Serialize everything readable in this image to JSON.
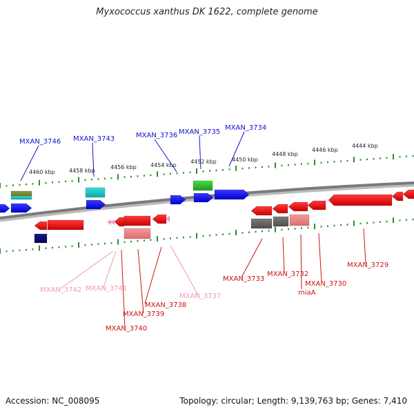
{
  "title": "Myxococcus xanthus DK 1622, complete genome",
  "footer": {
    "accession": "Accession: NC_008095",
    "summary": "Topology: circular; Length: 9,139,763 bp; Genes: 7,410"
  },
  "colors": {
    "backbone": "#7a7a7a",
    "tick": "#2e8b2e",
    "forward_label": "#1010cc",
    "reverse_label": "#cc1111",
    "pseudo_label": "#ee99bb"
  },
  "kbp_ticks": [
    "4460 kbp",
    "4458 kbp",
    "4456 kbp",
    "4454 kbp",
    "4452 kbp",
    "4450 kbp",
    "4448 kbp",
    "4446 kbp",
    "4444 kbp"
  ],
  "gene_labels": [
    {
      "text": "MXAN_3746",
      "kind": "forward"
    },
    {
      "text": "MXAN_3743",
      "kind": "forward"
    },
    {
      "text": "MXAN_3736",
      "kind": "forward"
    },
    {
      "text": "MXAN_3735",
      "kind": "forward"
    },
    {
      "text": "MXAN_3734",
      "kind": "forward"
    },
    {
      "text": "MXAN_3742",
      "kind": "pseudo"
    },
    {
      "text": "MXAN_3741",
      "kind": "pseudo"
    },
    {
      "text": "MXAN_3737",
      "kind": "pseudo"
    },
    {
      "text": "MXAN_3738",
      "kind": "reverse"
    },
    {
      "text": "MXAN_3739",
      "kind": "reverse"
    },
    {
      "text": "MXAN_3740",
      "kind": "reverse"
    },
    {
      "text": "MXAN_3733",
      "kind": "reverse"
    },
    {
      "text": "MXAN_3732",
      "kind": "reverse"
    },
    {
      "text": "MXAN_3730",
      "kind": "reverse"
    },
    {
      "text": "miaA",
      "kind": "reverse"
    },
    {
      "text": "MXAN_3729",
      "kind": "reverse"
    }
  ]
}
